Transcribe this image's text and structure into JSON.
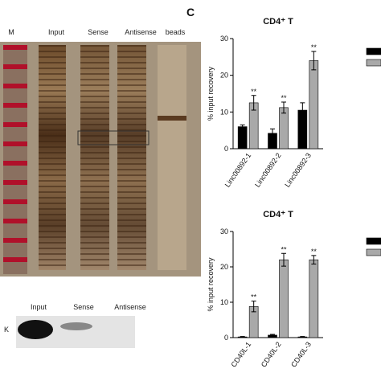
{
  "panel_label": "C",
  "gel": {
    "lanes": [
      "M",
      "Input",
      "Sense",
      "Antisense",
      "beads"
    ]
  },
  "blot": {
    "label": "K",
    "lanes": [
      "Input",
      "Sense",
      "Antisense"
    ]
  },
  "chart_data": [
    {
      "type": "bar",
      "title": "CD4⁺ T",
      "y_label": "% input recovery",
      "categories": [
        "Linc00892-1",
        "Linc00892-2",
        "Linc00892-3"
      ],
      "series": [
        {
          "color": "#000000",
          "values": [
            6,
            4.2,
            10.5
          ],
          "errors": [
            0.5,
            1.2,
            2
          ]
        },
        {
          "color": "#a9a9a9",
          "values": [
            12.5,
            11.2,
            24
          ],
          "errors": [
            2,
            1.5,
            2.5
          ]
        }
      ],
      "annotations": [
        "**",
        "**",
        "**"
      ],
      "ylim": [
        0,
        30
      ],
      "yticks": [
        0,
        10,
        20,
        30
      ]
    },
    {
      "type": "bar",
      "title": "CD4⁺ T",
      "y_label": "% input recovery",
      "categories": [
        "CD40L-1",
        "CD40L-2",
        "CD40L-3"
      ],
      "series": [
        {
          "color": "#000000",
          "values": [
            0.2,
            0.7,
            0.2
          ],
          "errors": [
            0.1,
            0.2,
            0.1
          ]
        },
        {
          "color": "#a9a9a9",
          "values": [
            8.8,
            22,
            22
          ],
          "errors": [
            1.5,
            1.8,
            1.2
          ]
        }
      ],
      "annotations": [
        "**",
        "**",
        "**"
      ],
      "ylim": [
        0,
        30
      ],
      "yticks": [
        0,
        10,
        20,
        30
      ]
    }
  ]
}
